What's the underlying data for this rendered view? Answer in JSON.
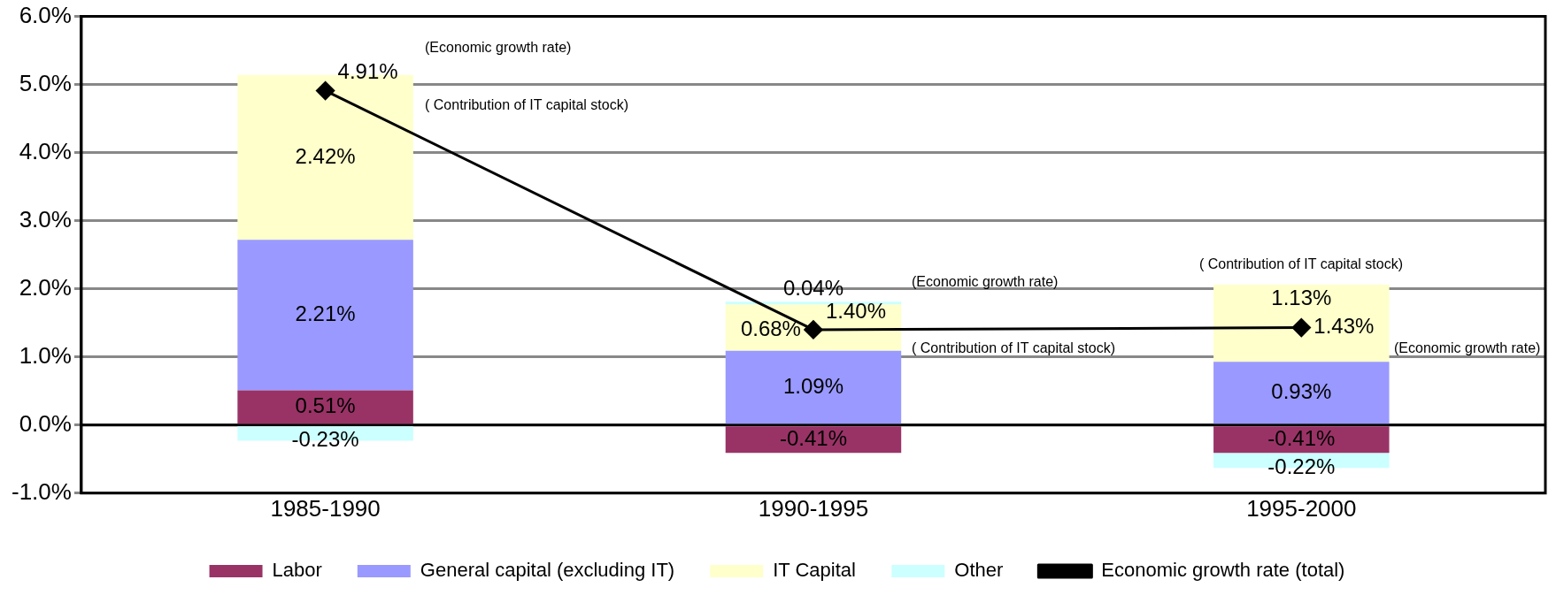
{
  "chart_data": {
    "type": "bar",
    "stacked": true,
    "categories": [
      "1985-1990",
      "1990-1995",
      "1995-2000"
    ],
    "series": [
      {
        "name": "Labor",
        "color": "#993366",
        "values": [
          0.51,
          -0.41,
          -0.41
        ],
        "value_labels": [
          "0.51%",
          "-0.41%",
          "-0.41%"
        ]
      },
      {
        "name": "General capital (excluding IT)",
        "color": "#9999ff",
        "values": [
          2.21,
          1.09,
          0.93
        ],
        "value_labels": [
          "2.21%",
          "1.09%",
          "0.93%"
        ]
      },
      {
        "name": "IT Capital",
        "color": "#ffffcc",
        "values": [
          2.42,
          0.68,
          1.13
        ],
        "value_labels": [
          "2.42%",
          "0.68%",
          "1.13%"
        ]
      },
      {
        "name": "Other",
        "color": "#ccffff",
        "values": [
          -0.23,
          0.04,
          -0.22
        ],
        "value_labels": [
          "-0.23%",
          "0.04%",
          "-0.22%"
        ]
      },
      {
        "name": "Economic growth rate (total)",
        "type": "line",
        "color": "#000000",
        "marker": "diamond",
        "values": [
          4.91,
          1.4,
          1.43
        ],
        "value_labels": [
          "4.91%",
          "1.40%",
          "1.43%"
        ]
      }
    ],
    "ylim": [
      -1,
      6
    ],
    "yticks": [
      {
        "value": -1,
        "label": "-1.0%"
      },
      {
        "value": 0,
        "label": "0.0%"
      },
      {
        "value": 1,
        "label": "1.0%"
      },
      {
        "value": 2,
        "label": "2.0%"
      },
      {
        "value": 3,
        "label": "3.0%"
      },
      {
        "value": 4,
        "label": "4.0%"
      },
      {
        "value": 5,
        "label": "5.0%"
      },
      {
        "value": 6,
        "label": "6.0%"
      }
    ],
    "grid": "y",
    "legend": "bottom",
    "annotations": [
      "(Economic growth rate)",
      "( Contribution of IT capital stock)",
      "(Economic growth rate)",
      "( Contribution of IT capital stock)",
      "( Contribution of IT capital stock)",
      "(Economic growth rate)"
    ]
  }
}
